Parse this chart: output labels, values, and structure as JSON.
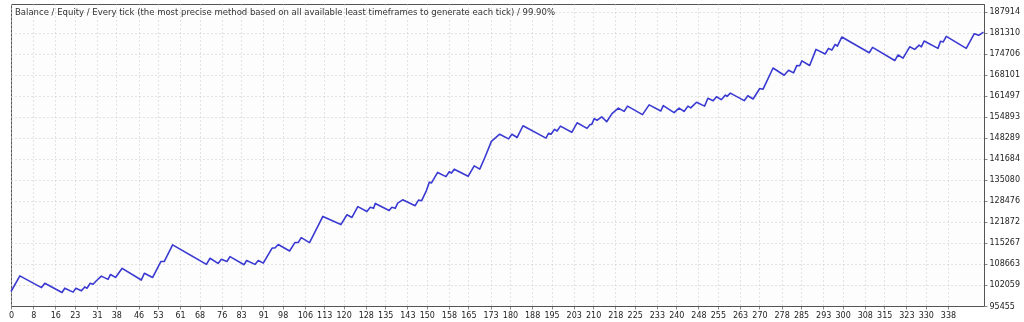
{
  "chart_data": {
    "type": "line",
    "title": "Balance / Equity / Every tick (the most precise method based on all available least timeframes to generate each tick) / 99.90%",
    "x": [
      0,
      3.2,
      11.0,
      12.2,
      18.4,
      19.4,
      22.4,
      23.4,
      25.4,
      26.6,
      27.4,
      28.6,
      29.6,
      30.8,
      32.6,
      35.0,
      35.9,
      37.7,
      40.1,
      47.0,
      48.1,
      51.1,
      54.1,
      55.3,
      58.3,
      70.5,
      71.8,
      74.7,
      75.9,
      77.9,
      79.0,
      84.1,
      85.0,
      88.0,
      89.2,
      91.0,
      94.2,
      95.2,
      96.4,
      100.5,
      102.4,
      103.6,
      104.7,
      107.7,
      112.5,
      119.0,
      121.2,
      123.0,
      125.1,
      128.4,
      129.6,
      130.8,
      131.4,
      136.4,
      137.4,
      138.6,
      139.5,
      141.3,
      145.8,
      147.0,
      148.1,
      149.9,
      150.9,
      151.7,
      153.9,
      156.9,
      158.1,
      158.9,
      159.9,
      164.9,
      167.1,
      169.1,
      170.9,
      173.3,
      176.3,
      179.5,
      180.7,
      182.6,
      184.7,
      193.0,
      193.9,
      194.8,
      196.1,
      197.0,
      198.2,
      202.3,
      204.2,
      207.8,
      208.9,
      209.5,
      210.4,
      211.4,
      213.1,
      214.9,
      216.8,
      219.1,
      221.2,
      222.4,
      227.8,
      230.2,
      234.4,
      235.3,
      239.2,
      241.0,
      242.8,
      244.2,
      245.2,
      247.3,
      250.2,
      251.4,
      253.3,
      254.5,
      256.2,
      257.7,
      258.3,
      259.5,
      264.5,
      265.8,
      267.7,
      270.1,
      271.3,
      272.5,
      274.9,
      278.9,
      280.5,
      282.3,
      283.5,
      284.5,
      285.3,
      288.1,
      290.4,
      293.7,
      294.9,
      296.1,
      297.3,
      298.1,
      299.7,
      309.6,
      310.8,
      318.8,
      320.0,
      321.8,
      324.2,
      326.0,
      327.6,
      328.4,
      329.4,
      334.4,
      335.3,
      336.3,
      337.4,
      344.6,
      347.5,
      349.1,
      350.8
    ],
    "series": [
      {
        "color": "#3a3ad2",
        "values": [
          100010,
          104930,
          101240,
          102590,
          99700,
          101050,
          99820,
          101050,
          100220,
          101450,
          101050,
          102590,
          102280,
          103390,
          104840,
          103820,
          105360,
          104440,
          107300,
          103610,
          105760,
          104440,
          109450,
          109450,
          114680,
          108530,
          110470,
          108840,
          110160,
          109450,
          110990,
          108440,
          109760,
          108530,
          109760,
          108930,
          113670,
          113670,
          114770,
          112740,
          115390,
          115390,
          116930,
          115390,
          123600,
          121050,
          124120,
          123290,
          126680,
          125140,
          126460,
          126150,
          127690,
          125450,
          126460,
          126150,
          127810,
          128830,
          126980,
          128740,
          128520,
          131810,
          134370,
          134150,
          137440,
          136120,
          137660,
          137230,
          138460,
          136210,
          139500,
          138460,
          142060,
          147190,
          149440,
          147990,
          149440,
          148420,
          152110,
          148210,
          149750,
          149440,
          150980,
          150460,
          151990,
          150050,
          153040,
          151280,
          152520,
          152520,
          154360,
          153840,
          154880,
          153350,
          155900,
          157650,
          156610,
          158270,
          155590,
          158670,
          156730,
          158450,
          156210,
          157650,
          156610,
          158270,
          157740,
          159500,
          158270,
          160730,
          159990,
          161220,
          160300,
          161740,
          161340,
          162360,
          159990,
          161530,
          160510,
          163800,
          163590,
          165830,
          170260,
          167990,
          169530,
          168730,
          171060,
          170970,
          172510,
          171060,
          176110,
          174660,
          176420,
          175890,
          177650,
          177120,
          179980,
          175060,
          176720,
          172600,
          174350,
          173340,
          176910,
          176110,
          177430,
          176910,
          178750,
          176420,
          178660,
          178450,
          180200,
          176420,
          181030,
          180510,
          181520
        ]
      }
    ],
    "xlim": [
      0,
      351
    ],
    "xticks": [
      0,
      8,
      16,
      23,
      31,
      38,
      46,
      53,
      61,
      68,
      76,
      83,
      91,
      98,
      106,
      113,
      120,
      128,
      135,
      143,
      150,
      158,
      165,
      173,
      180,
      188,
      195,
      203,
      210,
      218,
      225,
      233,
      240,
      248,
      255,
      263,
      270,
      278,
      285,
      293,
      300,
      308,
      315,
      323,
      330,
      338
    ],
    "ylim": [
      95455,
      190370
    ],
    "yticks": [
      95455,
      102059,
      108663,
      115267,
      121872,
      128476,
      135080,
      141684,
      148289,
      154893,
      161497,
      168101,
      174706,
      181310,
      187914
    ],
    "grid": true,
    "marker": "none",
    "line_style": "solid"
  }
}
